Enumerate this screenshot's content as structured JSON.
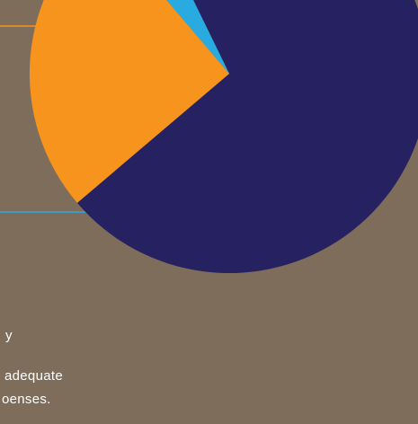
{
  "chart_data": {
    "type": "pie",
    "slices": [
      {
        "name": "",
        "value": 71,
        "color": "#262262"
      },
      {
        "name": "",
        "value": 25,
        "color": "#f7941d"
      },
      {
        "name": "",
        "value": 4,
        "color": "#29abe2"
      }
    ],
    "leader_colors": {
      "orange": "#f7941d",
      "blue": "#29abe2"
    }
  },
  "text": {
    "line1": "y",
    "line2": "adequate",
    "line3": "oenses."
  }
}
